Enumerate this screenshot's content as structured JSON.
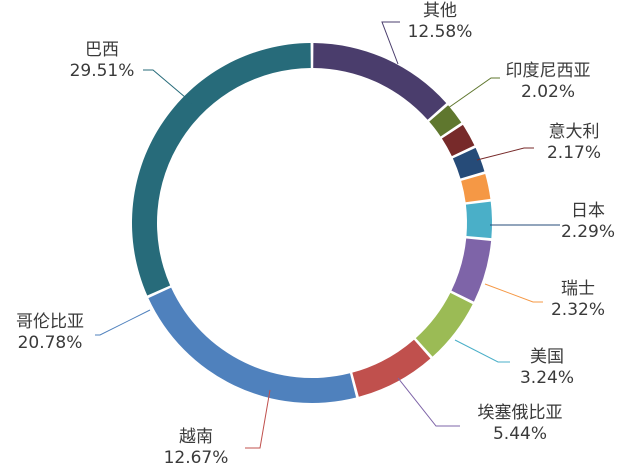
{
  "chart_data": {
    "type": "pie",
    "donut": true,
    "title": "",
    "slices": [
      {
        "label": "其他",
        "value": 12.58,
        "value_text": "12.58%",
        "color": "#4a3d6c"
      },
      {
        "label": "印度尼西亚",
        "value": 2.02,
        "value_text": "2.02%",
        "color": "#5f772e"
      },
      {
        "label": "意大利",
        "value": 2.17,
        "value_text": "2.17%",
        "color": "#772a2a"
      },
      {
        "label": "日本",
        "value": 2.29,
        "value_text": "2.29%",
        "color": "#264b78"
      },
      {
        "label": "瑞士",
        "value": 2.32,
        "value_text": "2.32%",
        "color": "#f59845"
      },
      {
        "label": "美国",
        "value": 3.24,
        "value_text": "3.24%",
        "color": "#4aafc8"
      },
      {
        "label": "埃塞俄比亚",
        "value": 5.44,
        "value_text": "5.44%",
        "color": "#7e64a8"
      },
      {
        "label": "越南",
        "value": 12.67,
        "value_text": "12.67%",
        "color": "#9bbb55"
      },
      {
        "label": "哥伦比亚",
        "value": 20.78,
        "value_text": "20.78%",
        "color": "#c0504d"
      },
      {
        "label": "巴西",
        "value": 29.51,
        "value_text": "29.51%",
        "color": "#4f81bd"
      }
    ]
  }
}
